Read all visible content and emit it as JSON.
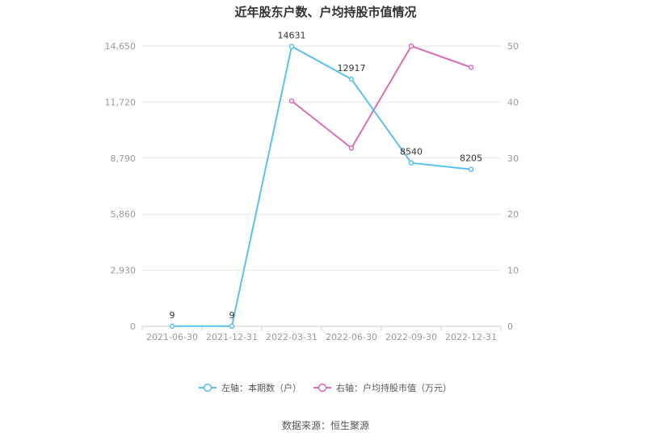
{
  "chart_data": {
    "type": "line",
    "title": "近年股东户数、户均持股市值情况",
    "categories": [
      "2021-06-30",
      "2021-12-31",
      "2022-03-31",
      "2022-06-30",
      "2022-09-30",
      "2022-12-31"
    ],
    "series": [
      {
        "name": "左轴：本期数（户）",
        "axis": "left",
        "color": "#5bc0eb",
        "values": [
          9,
          9,
          14631,
          12917,
          8540,
          8205
        ],
        "labels": [
          "9",
          "9",
          "14631",
          "12917",
          "8540",
          "8205"
        ]
      },
      {
        "name": "右轴：户均持股市值（万元）",
        "axis": "right",
        "color": "#d86fb4",
        "values": [
          null,
          null,
          40.2,
          31.8,
          50,
          46.2
        ]
      }
    ],
    "y_left": {
      "range": [
        0,
        14650
      ],
      "ticks": [
        0,
        2930,
        5860,
        8790,
        11720,
        14650
      ],
      "tick_labels": [
        "0",
        "2,930",
        "5,860",
        "8,790",
        "11,720",
        "14,650"
      ]
    },
    "y_right": {
      "range": [
        0,
        50
      ],
      "ticks": [
        0,
        10,
        20,
        30,
        40,
        50
      ],
      "tick_labels": [
        "0",
        "10",
        "20",
        "30",
        "40",
        "50"
      ]
    },
    "grid": true,
    "legend_position": "bottom"
  },
  "source": "数据来源：恒生聚源"
}
